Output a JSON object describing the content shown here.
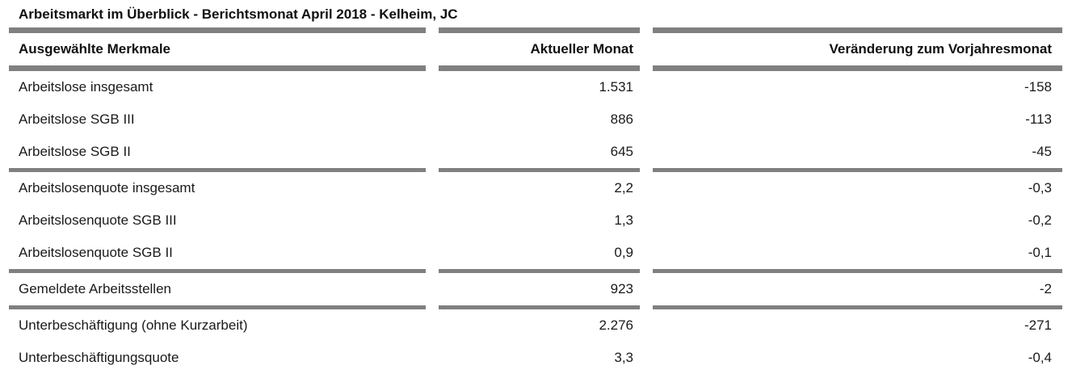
{
  "title": "Arbeitsmarkt im Überblick - Berichtsmonat April 2018 - Kelheim, JC",
  "table": {
    "columns": {
      "merkmale": "Ausgewählte Merkmale",
      "aktueller_monat": "Aktueller Monat",
      "veraenderung": "Veränderung zum Vorjahresmonat"
    },
    "rows": [
      {
        "label": "Arbeitslose insgesamt",
        "current": "1.531",
        "change": "-158"
      },
      {
        "label": "Arbeitslose SGB III",
        "current": "886",
        "change": "-113"
      },
      {
        "label": "Arbeitslose SGB II",
        "current": "645",
        "change": "-45"
      },
      {
        "label": "Arbeitslosenquote insgesamt",
        "current": "2,2",
        "change": "-0,3"
      },
      {
        "label": "Arbeitslosenquote SGB III",
        "current": "1,3",
        "change": "-0,2"
      },
      {
        "label": "Arbeitslosenquote SGB II",
        "current": "0,9",
        "change": "-0,1"
      },
      {
        "label": "Gemeldete Arbeitsstellen",
        "current": "923",
        "change": "-2"
      },
      {
        "label": "Unterbeschäftigung (ohne Kurzarbeit)",
        "current": "2.276",
        "change": "-271"
      },
      {
        "label": "Unterbeschäftigungsquote",
        "current": "3,3",
        "change": "-0,4"
      }
    ],
    "group_separators_after_row_index": [
      2,
      5,
      6
    ]
  },
  "colors": {
    "bar": "#808080",
    "text": "#1a1a1a",
    "background": "#ffffff"
  }
}
